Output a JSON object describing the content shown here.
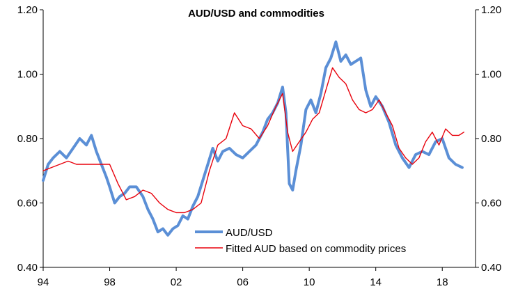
{
  "chart_data": {
    "type": "line",
    "title": "AUD/USD and commodities",
    "x_ticks": [
      "94",
      "98",
      "02",
      "06",
      "10",
      "14",
      "18"
    ],
    "x_tick_years": [
      1994,
      1998,
      2002,
      2006,
      2010,
      2014,
      2018
    ],
    "xlim": [
      1994,
      2020
    ],
    "ylim": [
      0.4,
      1.2
    ],
    "y_ticks_left": [
      "0.40",
      "0.60",
      "0.80",
      "1.00",
      "1.20"
    ],
    "y_ticks_right": [
      "0.40",
      "0.60",
      "0.80",
      "1.00",
      "1.20"
    ],
    "y_tick_values": [
      0.4,
      0.6,
      0.8,
      1.0,
      1.2
    ],
    "grid": false,
    "legend_position": "bottom-center",
    "series": [
      {
        "name": "AUD/USD",
        "color": "#5b8fd6",
        "x": [
          1994.0,
          1994.3,
          1994.6,
          1995.0,
          1995.4,
          1995.8,
          1996.2,
          1996.6,
          1996.9,
          1997.2,
          1997.5,
          1997.8,
          1998.0,
          1998.3,
          1998.6,
          1998.9,
          1999.2,
          1999.6,
          2000.0,
          2000.3,
          2000.6,
          2000.9,
          2001.2,
          2001.5,
          2001.8,
          2002.1,
          2002.4,
          2002.7,
          2003.0,
          2003.3,
          2003.6,
          2003.9,
          2004.2,
          2004.5,
          2004.8,
          2005.2,
          2005.6,
          2006.0,
          2006.4,
          2006.8,
          2007.2,
          2007.5,
          2007.8,
          2008.1,
          2008.4,
          2008.6,
          2008.8,
          2009.0,
          2009.2,
          2009.5,
          2009.8,
          2010.1,
          2010.4,
          2010.7,
          2011.0,
          2011.3,
          2011.6,
          2011.9,
          2012.2,
          2012.5,
          2012.8,
          2013.1,
          2013.4,
          2013.7,
          2014.0,
          2014.4,
          2014.8,
          2015.2,
          2015.6,
          2016.0,
          2016.4,
          2016.8,
          2017.2,
          2017.6,
          2018.0,
          2018.4,
          2018.8,
          2019.2
        ],
        "values": [
          0.67,
          0.72,
          0.74,
          0.76,
          0.74,
          0.77,
          0.8,
          0.78,
          0.81,
          0.76,
          0.72,
          0.68,
          0.65,
          0.6,
          0.62,
          0.63,
          0.65,
          0.65,
          0.62,
          0.58,
          0.55,
          0.51,
          0.52,
          0.5,
          0.52,
          0.53,
          0.56,
          0.55,
          0.59,
          0.62,
          0.67,
          0.72,
          0.77,
          0.73,
          0.76,
          0.77,
          0.75,
          0.74,
          0.76,
          0.78,
          0.82,
          0.86,
          0.88,
          0.91,
          0.96,
          0.88,
          0.66,
          0.64,
          0.7,
          0.78,
          0.89,
          0.92,
          0.88,
          0.94,
          1.02,
          1.05,
          1.1,
          1.04,
          1.06,
          1.03,
          1.04,
          1.05,
          0.95,
          0.9,
          0.93,
          0.9,
          0.85,
          0.78,
          0.74,
          0.71,
          0.75,
          0.76,
          0.75,
          0.79,
          0.8,
          0.74,
          0.72,
          0.71
        ]
      },
      {
        "name": "Fitted AUD based on commodity prices",
        "color": "#e8000b",
        "x": [
          1994.0,
          1994.5,
          1995.0,
          1995.5,
          1996.0,
          1996.5,
          1997.0,
          1997.5,
          1998.0,
          1998.5,
          1999.0,
          1999.5,
          2000.0,
          2000.5,
          2001.0,
          2001.5,
          2002.0,
          2002.5,
          2003.0,
          2003.5,
          2004.0,
          2004.5,
          2005.0,
          2005.5,
          2006.0,
          2006.5,
          2007.0,
          2007.5,
          2008.0,
          2008.4,
          2008.7,
          2009.0,
          2009.4,
          2009.8,
          2010.2,
          2010.6,
          2011.0,
          2011.4,
          2011.8,
          2012.2,
          2012.6,
          2013.0,
          2013.4,
          2013.8,
          2014.2,
          2014.6,
          2015.0,
          2015.4,
          2015.8,
          2016.2,
          2016.6,
          2017.0,
          2017.4,
          2017.8,
          2018.2,
          2018.6,
          2019.0,
          2019.3
        ],
        "values": [
          0.7,
          0.71,
          0.72,
          0.73,
          0.72,
          0.72,
          0.72,
          0.72,
          0.72,
          0.66,
          0.61,
          0.62,
          0.64,
          0.63,
          0.6,
          0.58,
          0.57,
          0.57,
          0.58,
          0.6,
          0.7,
          0.78,
          0.8,
          0.88,
          0.84,
          0.83,
          0.8,
          0.84,
          0.9,
          0.94,
          0.82,
          0.76,
          0.79,
          0.82,
          0.86,
          0.88,
          0.95,
          1.02,
          0.99,
          0.97,
          0.92,
          0.89,
          0.88,
          0.89,
          0.92,
          0.88,
          0.84,
          0.77,
          0.74,
          0.72,
          0.74,
          0.79,
          0.82,
          0.78,
          0.83,
          0.81,
          0.81,
          0.82
        ]
      }
    ]
  }
}
